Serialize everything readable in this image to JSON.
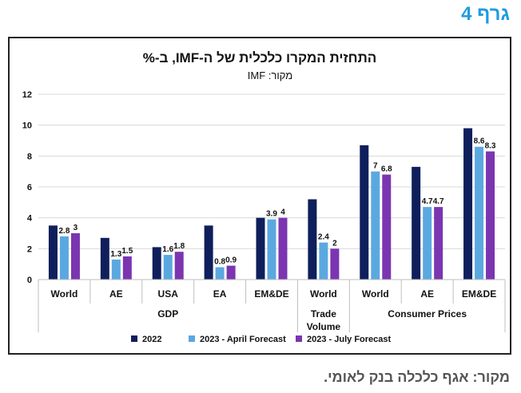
{
  "figure_label": "גרף 4",
  "source_note": "מקור: אגף כלכלה בנק לאומי.",
  "colors": {
    "s2022": "#0f1f5c",
    "april": "#5ba8e0",
    "july": "#7b35b0"
  },
  "chart_data": {
    "type": "bar",
    "title": "התחזית המקרו כלכלית של ה-IMF, ב-%",
    "subtitle": "מקור: IMF",
    "xlabel": "",
    "ylabel": "",
    "ylim": [
      0,
      12
    ],
    "yticks": [
      "0",
      "2",
      "4",
      "6",
      "8",
      "10",
      "12"
    ],
    "grid": true,
    "legend_position": "bottom",
    "categories": [
      "World",
      "AE",
      "USA",
      "EA",
      "EM&DE",
      "World",
      "World",
      "AE",
      "EM&DE"
    ],
    "groups": [
      {
        "label": "GDP",
        "label_lines": [
          "GDP"
        ],
        "categories": [
          0,
          1,
          2,
          3,
          4
        ]
      },
      {
        "label": "Trade Volume",
        "label_lines": [
          "Trade",
          "Volume"
        ],
        "categories": [
          5
        ]
      },
      {
        "label": "Consumer Prices",
        "label_lines": [
          "Consumer Prices"
        ],
        "categories": [
          6,
          7,
          8
        ]
      }
    ],
    "series": [
      {
        "name": "2022",
        "values": [
          3.5,
          2.7,
          2.1,
          3.5,
          4.0,
          5.2,
          8.7,
          7.3,
          9.8
        ],
        "labels": [
          "",
          "",
          "",
          "",
          "",
          "",
          "",
          "",
          ""
        ]
      },
      {
        "name": "2023 - April Forecast",
        "values": [
          2.8,
          1.3,
          1.6,
          0.8,
          3.9,
          2.4,
          7.0,
          4.7,
          8.6
        ],
        "labels": [
          "2.8",
          "1.3",
          "1.6",
          "0.8",
          "3.9",
          "2.4",
          "7",
          "4.7",
          "8.6"
        ]
      },
      {
        "name": "2023 - July Forecast",
        "values": [
          3.0,
          1.5,
          1.8,
          0.9,
          4.0,
          2.0,
          6.8,
          4.7,
          8.3
        ],
        "labels": [
          "3",
          "1.5",
          "1.8",
          "0.9",
          "4",
          "2",
          "6.8",
          "4.7",
          "8.3"
        ]
      }
    ]
  }
}
